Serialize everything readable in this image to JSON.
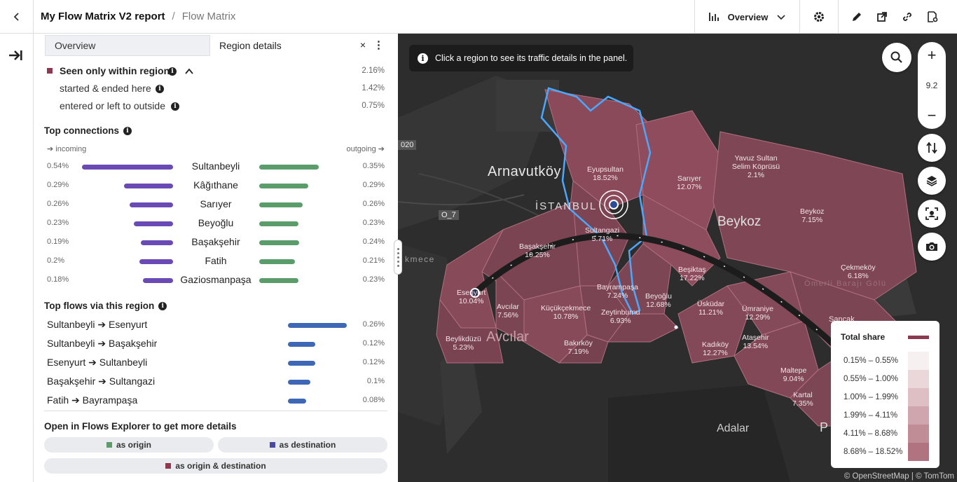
{
  "header": {
    "report_name": "My Flow Matrix V2 report",
    "separator": "/",
    "current_page": "Flow Matrix",
    "view_selector": "Overview"
  },
  "panel": {
    "tabs": {
      "overview": "Overview",
      "region_details": "Region details"
    },
    "seen_within": {
      "label": "Seen only within region",
      "value": "2.16%"
    },
    "started_ended": {
      "label": "started & ended here",
      "value": "1.42%"
    },
    "entered_left": {
      "label": "entered or left to outside",
      "value": "0.75%"
    },
    "top_connections": {
      "title": "Top connections",
      "incoming_label": "➔ incoming",
      "outgoing_label": "outgoing ➔",
      "rows": [
        {
          "name": "Sultanbeyli",
          "incoming": "0.54%",
          "outgoing": "0.35%",
          "in_frac": 1.0,
          "out_frac": 0.65
        },
        {
          "name": "Kâğıthane",
          "incoming": "0.29%",
          "outgoing": "0.29%",
          "in_frac": 0.54,
          "out_frac": 0.54
        },
        {
          "name": "Sarıyer",
          "incoming": "0.26%",
          "outgoing": "0.26%",
          "in_frac": 0.48,
          "out_frac": 0.48
        },
        {
          "name": "Beyoğlu",
          "incoming": "0.23%",
          "outgoing": "0.23%",
          "in_frac": 0.43,
          "out_frac": 0.43
        },
        {
          "name": "Başakşehir",
          "incoming": "0.19%",
          "outgoing": "0.24%",
          "in_frac": 0.35,
          "out_frac": 0.44
        },
        {
          "name": "Fatih",
          "incoming": "0.2%",
          "outgoing": "0.21%",
          "in_frac": 0.37,
          "out_frac": 0.39
        },
        {
          "name": "Gaziosmanpaşa",
          "incoming": "0.18%",
          "outgoing": "0.23%",
          "in_frac": 0.33,
          "out_frac": 0.43
        }
      ]
    },
    "top_flows": {
      "title": "Top flows via this region",
      "rows": [
        {
          "label": "Sultanbeyli ➔ Esenyurt",
          "value": "0.26%",
          "frac": 1.0
        },
        {
          "label": "Sultanbeyli ➔ Başakşehir",
          "value": "0.12%",
          "frac": 0.46
        },
        {
          "label": "Esenyurt ➔ Sultanbeyli",
          "value": "0.12%",
          "frac": 0.46
        },
        {
          "label": "Başakşehir ➔ Sultangazi",
          "value": "0.1%",
          "frac": 0.38
        },
        {
          "label": "Fatih ➔ Bayrampaşa",
          "value": "0.08%",
          "frac": 0.31
        }
      ]
    },
    "explorer": {
      "title": "Open in Flows Explorer to get more details",
      "as_origin": "as origin",
      "as_destination": "as destination",
      "as_both": "as origin & destination"
    }
  },
  "map": {
    "tip": "Click a region to see its traffic details in the panel.",
    "zoom_level": "9.2",
    "labels": [
      {
        "name": "Eyupsultan",
        "value": "18.52%"
      },
      {
        "name": "Sarıyer",
        "value": "12.07%"
      },
      {
        "name": "Yavuz Sultan Selim Köprüsü",
        "value": "2.1%"
      },
      {
        "name": "Beykoz",
        "value": "7.15%"
      },
      {
        "name": "Sultangazi",
        "value": "5.71%"
      },
      {
        "name": "Başakşehir",
        "value": "10.25%"
      },
      {
        "name": "Beşiktaş",
        "value": "17.22%"
      },
      {
        "name": "Çekmeköy",
        "value": "6.18%"
      },
      {
        "name": "Esenyurt",
        "value": "10.04%"
      },
      {
        "name": "Bayrampaşa",
        "value": "7.24%"
      },
      {
        "name": "Beyoğlu",
        "value": "12.68%"
      },
      {
        "name": "Avcılar",
        "value": "7.56%"
      },
      {
        "name": "Küçükçekmece",
        "value": "10.78%"
      },
      {
        "name": "Üsküdar",
        "value": "11.21%"
      },
      {
        "name": "Ümraniye",
        "value": "12.29%"
      },
      {
        "name": "Zeytinburnu",
        "value": "6.93%"
      },
      {
        "name": "Beylikdüzü",
        "value": "5.23%"
      },
      {
        "name": "Bakırköy",
        "value": "7.19%"
      },
      {
        "name": "Kadıköy",
        "value": "12.27%"
      },
      {
        "name": "Ataşehir",
        "value": "13.54%"
      },
      {
        "name": "Maltepe",
        "value": "9.04%"
      },
      {
        "name": "Kartal",
        "value": "7.35%"
      }
    ],
    "place_names": {
      "arnavutkoy": "Arnavutköy",
      "istanbul": "İSTANBUL",
      "beykoz": "Beykoz",
      "avcilar": "Avcılar",
      "adalar": "Adalar",
      "omerli": "Ömerli Barajı Gölü",
      "kmece": "kmece",
      "road1": "020",
      "road2": "O_7",
      "sanca": "Sancak",
      "p": "P"
    },
    "legend": {
      "title": "Total share",
      "ranges": [
        "0.15% – 0.55%",
        "0.55% – 1.00%",
        "1.00% – 1.99%",
        "1.99% – 4.11%",
        "4.11% – 8.68%",
        "8.68% – 18.52%"
      ],
      "colors": [
        "#f7f0f1",
        "#ead7da",
        "#ddbfc4",
        "#cfa6ad",
        "#c08d96",
        "#b1737f"
      ],
      "total_color": "#8c3a4f"
    },
    "attribution": "© OpenStreetMap | © TomTom"
  }
}
